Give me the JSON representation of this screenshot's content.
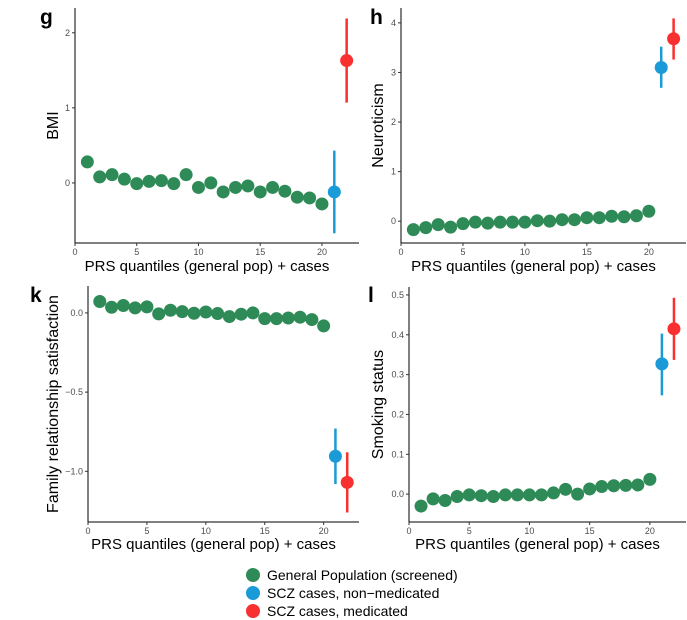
{
  "colors": {
    "general": "#2e8b57",
    "nonmed": "#1a9ad6",
    "med": "#f8302f"
  },
  "legend": {
    "items": [
      {
        "label": "General Population (screened)",
        "color": "#2e8b57"
      },
      {
        "label": "SCZ cases, non−medicated",
        "color": "#1a9ad6"
      },
      {
        "label": "SCZ cases, medicated",
        "color": "#f8302f"
      }
    ]
  },
  "chart_data": [
    {
      "panel": "g",
      "type": "scatter",
      "xlabel": "PRS quantiles (general pop) + cases",
      "ylabel": "BMI",
      "xlim": [
        0,
        23
      ],
      "ylim": [
        -0.8,
        2.33
      ],
      "xticks": [
        0,
        5,
        10,
        15,
        20
      ],
      "xtick_labels": [
        "0",
        "5",
        "10",
        "15",
        "20"
      ],
      "yticks": [
        0,
        1,
        2
      ],
      "ytick_labels": [
        "0",
        "1",
        "2"
      ],
      "general": {
        "x": [
          1,
          2,
          3,
          4,
          5,
          6,
          7,
          8,
          9,
          10,
          11,
          12,
          13,
          14,
          15,
          16,
          17,
          18,
          19,
          20
        ],
        "y": [
          0.28,
          0.08,
          0.11,
          0.05,
          -0.01,
          0.02,
          0.03,
          -0.01,
          0.11,
          -0.06,
          0.0,
          -0.12,
          -0.06,
          -0.04,
          -0.12,
          -0.06,
          -0.11,
          -0.19,
          -0.2,
          -0.28
        ],
        "err": 0.06
      },
      "nonmed": {
        "x": 21,
        "y": -0.12,
        "lo": -0.67,
        "hi": 0.43
      },
      "med": {
        "x": 22,
        "y": 1.63,
        "lo": 1.07,
        "hi": 2.19
      }
    },
    {
      "panel": "h",
      "type": "scatter",
      "xlabel": "PRS quantiles (general pop) + cases",
      "ylabel": "Neuroticism",
      "xlim": [
        0,
        23
      ],
      "ylim": [
        -0.44,
        4.3
      ],
      "xticks": [
        0,
        5,
        10,
        15,
        20
      ],
      "xtick_labels": [
        "0",
        "5",
        "10",
        "15",
        "20"
      ],
      "yticks": [
        0,
        1,
        2,
        3,
        4
      ],
      "ytick_labels": [
        "0",
        "1",
        "2",
        "3",
        "4"
      ],
      "general": {
        "x": [
          1,
          2,
          3,
          4,
          5,
          6,
          7,
          8,
          9,
          10,
          11,
          12,
          13,
          14,
          15,
          16,
          17,
          18,
          19,
          20
        ],
        "y": [
          -0.17,
          -0.13,
          -0.07,
          -0.12,
          -0.05,
          -0.02,
          -0.04,
          -0.02,
          -0.02,
          -0.02,
          0.01,
          0.0,
          0.03,
          0.03,
          0.07,
          0.07,
          0.1,
          0.09,
          0.11,
          0.2
        ],
        "err": 0.04
      },
      "nonmed": {
        "x": 21,
        "y": 3.1,
        "lo": 2.69,
        "hi": 3.52
      },
      "med": {
        "x": 22,
        "y": 3.68,
        "lo": 3.26,
        "hi": 4.09
      }
    },
    {
      "panel": "k",
      "type": "scatter",
      "xlabel": "PRS quantiles (general pop) + cases",
      "ylabel": "Family relationship satisfaction",
      "xlim": [
        0,
        23
      ],
      "ylim": [
        -1.32,
        0.17
      ],
      "xticks": [
        0,
        5,
        10,
        15,
        20
      ],
      "xtick_labels": [
        "0",
        "5",
        "10",
        "15",
        "20"
      ],
      "yticks": [
        -1.0,
        -0.5,
        0.0
      ],
      "ytick_labels": [
        "−1.0",
        "−0.5",
        "0.0"
      ],
      "general": {
        "x": [
          1,
          2,
          3,
          4,
          5,
          6,
          7,
          8,
          9,
          10,
          11,
          12,
          13,
          14,
          15,
          16,
          17,
          18,
          19,
          20
        ],
        "y": [
          0.072,
          0.036,
          0.047,
          0.032,
          0.038,
          -0.006,
          0.017,
          0.008,
          -0.002,
          0.006,
          -0.004,
          -0.023,
          -0.008,
          0.0,
          -0.036,
          -0.036,
          -0.032,
          -0.027,
          -0.042,
          -0.082
        ],
        "err": 0.01
      },
      "nonmed": {
        "x": 21,
        "y": -0.905,
        "lo": -1.08,
        "hi": -0.73
      },
      "med": {
        "x": 22,
        "y": -1.07,
        "lo": -1.26,
        "hi": -0.88
      }
    },
    {
      "panel": "l",
      "type": "scatter",
      "xlabel": "PRS quantiles (general pop) + cases",
      "ylabel": "Smoking status",
      "xlim": [
        0,
        23
      ],
      "ylim": [
        -0.07,
        0.52
      ],
      "xticks": [
        0,
        5,
        10,
        15,
        20
      ],
      "xtick_labels": [
        "0",
        "5",
        "10",
        "15",
        "20"
      ],
      "yticks": [
        0.0,
        0.1,
        0.2,
        0.3,
        0.4,
        0.5
      ],
      "ytick_labels": [
        "0.0",
        "0.1",
        "0.2",
        "0.3",
        "0.4",
        "0.5"
      ],
      "general": {
        "x": [
          1,
          2,
          3,
          4,
          5,
          6,
          7,
          8,
          9,
          10,
          11,
          12,
          13,
          14,
          15,
          16,
          17,
          18,
          19,
          20
        ],
        "y": [
          -0.03,
          -0.012,
          -0.016,
          -0.006,
          -0.002,
          -0.004,
          -0.006,
          -0.002,
          -0.002,
          -0.002,
          -0.002,
          0.003,
          0.012,
          0.0,
          0.013,
          0.019,
          0.021,
          0.022,
          0.023,
          0.037
        ],
        "err": 0.004
      },
      "nonmed": {
        "x": 21,
        "y": 0.327,
        "lo": 0.248,
        "hi": 0.403
      },
      "med": {
        "x": 22,
        "y": 0.415,
        "lo": 0.337,
        "hi": 0.493
      }
    }
  ]
}
